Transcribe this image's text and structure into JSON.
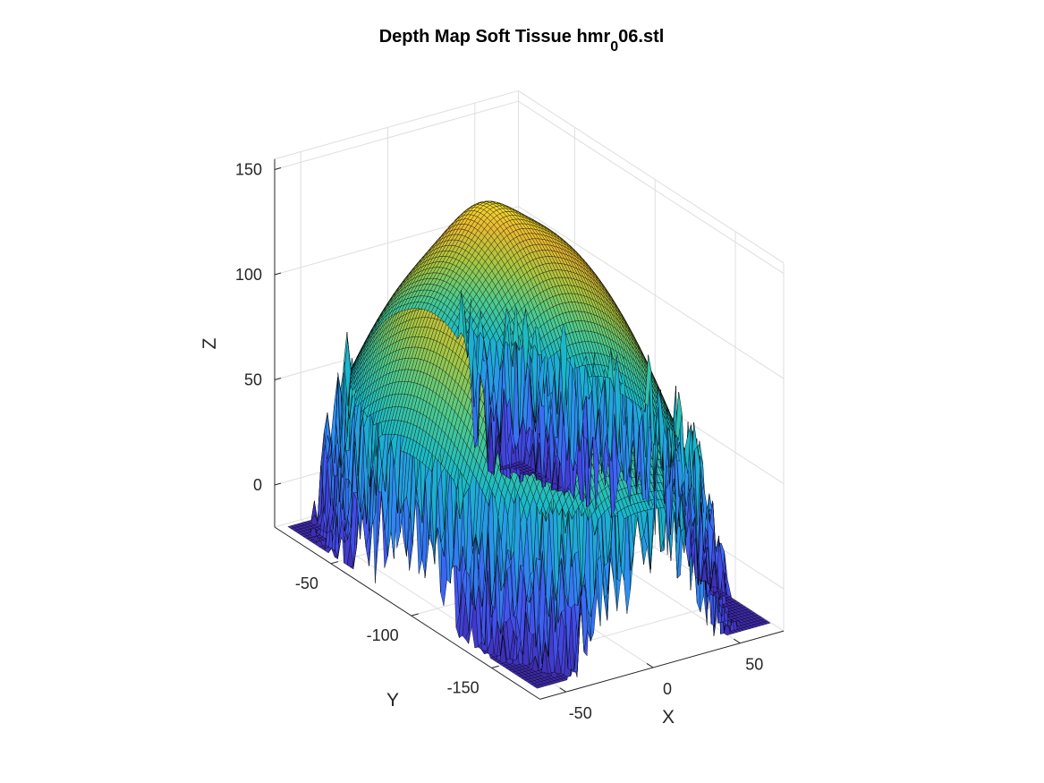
{
  "chart_data": {
    "type": "surface",
    "title_main": "Depth Map Soft Tissue hmr",
    "title_sub": "0",
    "title_tail": "06.stl",
    "xlabel": "X",
    "ylabel": "Y",
    "zlabel": "Z",
    "xlim": [
      -65,
      75
    ],
    "ylim": [
      -180,
      -15
    ],
    "zlim": [
      -20,
      155
    ],
    "x_ticks": [
      -50,
      0,
      50
    ],
    "y_ticks": [
      -50,
      -100,
      -150
    ],
    "z_ticks": [
      0,
      50,
      100,
      150
    ],
    "x_tick_labels": [
      "-50",
      "0",
      "50"
    ],
    "y_tick_labels": [
      "-50",
      "-100",
      "-150"
    ],
    "z_tick_labels": [
      "0",
      "50",
      "100",
      "150"
    ],
    "grid": true,
    "colormap": "parula",
    "colormap_stops": [
      "#3e26a8",
      "#4353f3",
      "#2d8ef2",
      "#19b8c9",
      "#4ecb8d",
      "#a8c742",
      "#e9ba33",
      "#f5e92b"
    ],
    "surface_description_grid": {
      "x_range": [
        -62,
        72
      ],
      "y_range": [
        -175,
        -20
      ],
      "x_steps": 70,
      "y_steps": 80
    }
  }
}
